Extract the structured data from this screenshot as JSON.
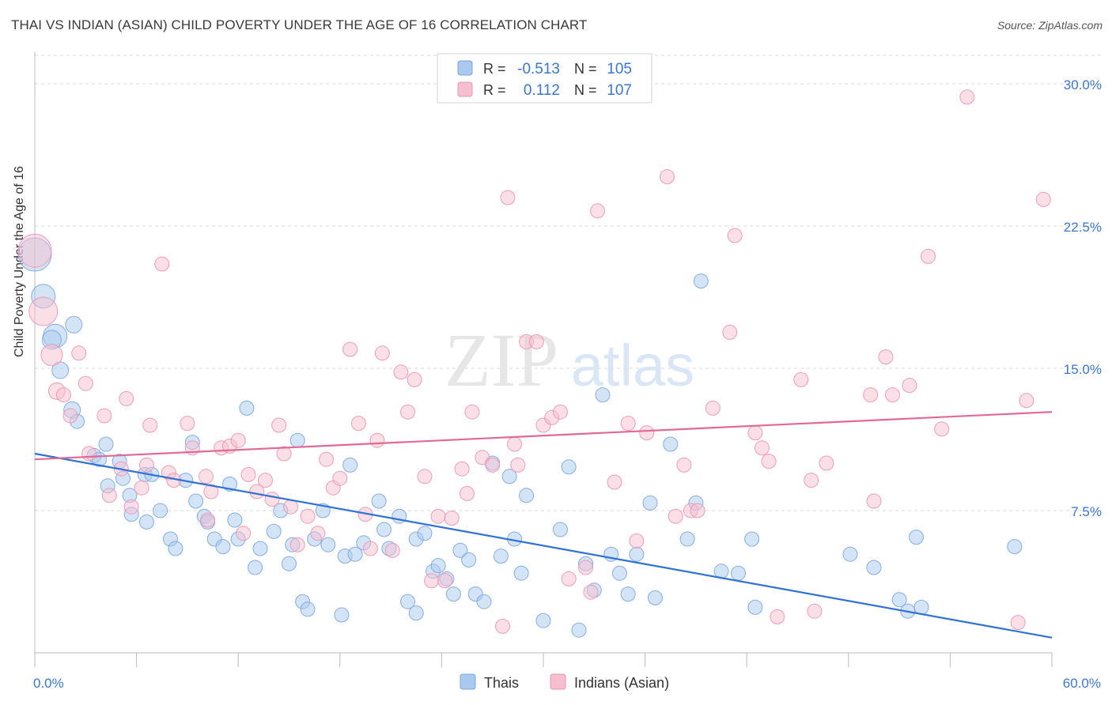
{
  "header": {
    "title": "THAI VS INDIAN (ASIAN) CHILD POVERTY UNDER THE AGE OF 16 CORRELATION CHART",
    "source": "Source: ZipAtlas.com"
  },
  "watermark": {
    "zip": "ZIP",
    "atlas": "atlas"
  },
  "legend_box": {
    "rows": [
      {
        "r_label": "R =",
        "r_value": "-0.513",
        "n_label": "N =",
        "n_value": "105"
      },
      {
        "r_label": "R =",
        "r_value": "0.112",
        "n_label": "N =",
        "n_value": "107"
      }
    ]
  },
  "bottom_legend": [
    "Thais",
    "Indians (Asian)"
  ],
  "colors": {
    "thais_fill": "#a9c9f0",
    "thais_stroke": "#7aa6e0",
    "thais_line": "#2f72d4",
    "indians_fill": "#f6bfd0",
    "indians_stroke": "#ee94b2",
    "indians_line": "#e06a95",
    "accent_text": "#3a78d0",
    "grid": "#d9d9d9"
  },
  "chart_data": {
    "type": "scatter",
    "title": "THAI VS INDIAN (ASIAN) CHILD POVERTY UNDER THE AGE OF 16 CORRELATION CHART",
    "xlabel": "",
    "ylabel": "Child Poverty Under the Age of 16",
    "xlim": [
      0,
      60
    ],
    "ylim": [
      0,
      31.5
    ],
    "x_tick_labels": [
      "0.0%",
      "60.0%"
    ],
    "y_ticks": [
      7.5,
      15.0,
      22.5,
      30.0
    ],
    "y_tick_labels": [
      "7.5%",
      "15.0%",
      "22.5%",
      "30.0%"
    ],
    "grid": "horizontal dashed",
    "series": [
      {
        "name": "Thais",
        "trend": {
          "x": [
            0,
            60
          ],
          "y": [
            10.5,
            0.8
          ]
        },
        "points": [
          [
            0.0,
            21.0,
            1.4
          ],
          [
            0.5,
            18.8,
            1.0
          ],
          [
            1.2,
            16.7,
            1.0
          ],
          [
            1.0,
            16.5,
            0.8
          ],
          [
            1.5,
            14.9,
            0.7
          ],
          [
            2.3,
            17.3,
            0.7
          ],
          [
            2.2,
            12.8,
            0.7
          ],
          [
            2.5,
            12.2,
            0.6
          ],
          [
            3.5,
            10.4,
            0.6
          ],
          [
            3.8,
            10.2,
            0.6
          ],
          [
            4.2,
            11.0,
            0.6
          ],
          [
            4.3,
            8.8,
            0.6
          ],
          [
            5.0,
            10.1,
            0.6
          ],
          [
            5.2,
            9.2,
            0.6
          ],
          [
            5.6,
            8.3,
            0.6
          ],
          [
            5.7,
            7.3,
            0.6
          ],
          [
            6.5,
            9.4,
            0.6
          ],
          [
            6.6,
            6.9,
            0.6
          ],
          [
            6.9,
            9.4,
            0.6
          ],
          [
            7.4,
            7.5,
            0.6
          ],
          [
            8.0,
            6.0,
            0.6
          ],
          [
            8.3,
            5.5,
            0.6
          ],
          [
            8.9,
            9.1,
            0.6
          ],
          [
            9.3,
            11.1,
            0.6
          ],
          [
            9.5,
            8.0,
            0.6
          ],
          [
            10.0,
            7.2,
            0.6
          ],
          [
            10.2,
            6.9,
            0.6
          ],
          [
            10.6,
            6.0,
            0.6
          ],
          [
            11.1,
            5.6,
            0.6
          ],
          [
            11.5,
            8.9,
            0.6
          ],
          [
            11.8,
            7.0,
            0.6
          ],
          [
            12.0,
            6.0,
            0.6
          ],
          [
            12.5,
            12.9,
            0.6
          ],
          [
            13.0,
            4.5,
            0.6
          ],
          [
            13.3,
            5.5,
            0.6
          ],
          [
            14.1,
            6.4,
            0.6
          ],
          [
            14.5,
            7.5,
            0.6
          ],
          [
            15.0,
            4.7,
            0.6
          ],
          [
            15.2,
            5.7,
            0.6
          ],
          [
            15.5,
            11.2,
            0.6
          ],
          [
            15.8,
            2.7,
            0.6
          ],
          [
            16.1,
            2.3,
            0.6
          ],
          [
            16.5,
            6.0,
            0.6
          ],
          [
            17.0,
            7.5,
            0.6
          ],
          [
            17.3,
            5.7,
            0.6
          ],
          [
            18.1,
            2.0,
            0.6
          ],
          [
            18.3,
            5.1,
            0.6
          ],
          [
            18.6,
            9.9,
            0.6
          ],
          [
            18.9,
            5.2,
            0.6
          ],
          [
            19.4,
            5.8,
            0.6
          ],
          [
            20.3,
            8.0,
            0.6
          ],
          [
            20.6,
            6.5,
            0.6
          ],
          [
            20.9,
            5.5,
            0.6
          ],
          [
            21.5,
            7.2,
            0.6
          ],
          [
            22.0,
            2.7,
            0.6
          ],
          [
            22.5,
            6.0,
            0.6
          ],
          [
            22.5,
            2.1,
            0.6
          ],
          [
            23.0,
            6.3,
            0.6
          ],
          [
            23.5,
            4.3,
            0.6
          ],
          [
            23.8,
            4.6,
            0.6
          ],
          [
            24.3,
            3.9,
            0.6
          ],
          [
            24.7,
            3.1,
            0.6
          ],
          [
            25.1,
            5.4,
            0.6
          ],
          [
            25.6,
            4.9,
            0.6
          ],
          [
            26.0,
            3.1,
            0.6
          ],
          [
            26.5,
            2.7,
            0.6
          ],
          [
            27.0,
            10.0,
            0.6
          ],
          [
            27.5,
            5.1,
            0.6
          ],
          [
            28.0,
            9.3,
            0.6
          ],
          [
            28.3,
            6.0,
            0.6
          ],
          [
            28.7,
            4.2,
            0.6
          ],
          [
            29.0,
            8.3,
            0.6
          ],
          [
            30.0,
            1.7,
            0.6
          ],
          [
            31.0,
            6.5,
            0.6
          ],
          [
            31.5,
            9.8,
            0.6
          ],
          [
            32.1,
            1.2,
            0.6
          ],
          [
            32.5,
            4.7,
            0.6
          ],
          [
            33.0,
            3.3,
            0.6
          ],
          [
            33.5,
            13.6,
            0.6
          ],
          [
            34.0,
            5.2,
            0.6
          ],
          [
            34.5,
            4.2,
            0.6
          ],
          [
            35.0,
            3.1,
            0.6
          ],
          [
            35.5,
            5.2,
            0.6
          ],
          [
            36.3,
            7.9,
            0.6
          ],
          [
            36.6,
            2.9,
            0.6
          ],
          [
            37.5,
            11.0,
            0.6
          ],
          [
            38.5,
            6.0,
            0.6
          ],
          [
            39.0,
            7.9,
            0.6
          ],
          [
            39.3,
            19.6,
            0.6
          ],
          [
            40.5,
            4.3,
            0.6
          ],
          [
            41.5,
            4.2,
            0.6
          ],
          [
            42.3,
            6.0,
            0.6
          ],
          [
            42.5,
            2.4,
            0.6
          ],
          [
            48.1,
            5.2,
            0.6
          ],
          [
            49.5,
            4.5,
            0.6
          ],
          [
            51.0,
            2.8,
            0.6
          ],
          [
            51.5,
            2.2,
            0.6
          ],
          [
            52.0,
            6.1,
            0.6
          ],
          [
            52.3,
            2.4,
            0.6
          ],
          [
            57.8,
            5.6,
            0.6
          ]
        ]
      },
      {
        "name": "Indians (Asian)",
        "trend": {
          "x": [
            0,
            60
          ],
          "y": [
            10.2,
            12.7
          ]
        },
        "points": [
          [
            0.0,
            21.2,
            1.4
          ],
          [
            0.5,
            18.0,
            1.2
          ],
          [
            1.0,
            15.7,
            0.9
          ],
          [
            1.3,
            13.8,
            0.7
          ],
          [
            1.7,
            13.6,
            0.6
          ],
          [
            2.1,
            12.5,
            0.6
          ],
          [
            2.6,
            15.8,
            0.6
          ],
          [
            3.0,
            14.2,
            0.6
          ],
          [
            3.2,
            10.5,
            0.6
          ],
          [
            4.1,
            12.5,
            0.6
          ],
          [
            4.4,
            8.3,
            0.6
          ],
          [
            5.1,
            9.7,
            0.6
          ],
          [
            5.4,
            13.4,
            0.6
          ],
          [
            5.7,
            7.7,
            0.6
          ],
          [
            6.3,
            8.7,
            0.6
          ],
          [
            6.6,
            9.9,
            0.6
          ],
          [
            6.8,
            12.0,
            0.6
          ],
          [
            7.5,
            20.5,
            0.6
          ],
          [
            7.9,
            9.5,
            0.6
          ],
          [
            8.2,
            9.1,
            0.6
          ],
          [
            9.0,
            12.1,
            0.6
          ],
          [
            9.3,
            10.8,
            0.6
          ],
          [
            10.1,
            9.3,
            0.6
          ],
          [
            10.2,
            7.0,
            0.6
          ],
          [
            10.4,
            8.5,
            0.6
          ],
          [
            11.0,
            10.8,
            0.6
          ],
          [
            11.5,
            10.9,
            0.6
          ],
          [
            12.0,
            11.2,
            0.6
          ],
          [
            12.3,
            6.3,
            0.6
          ],
          [
            12.6,
            9.4,
            0.6
          ],
          [
            13.1,
            8.5,
            0.6
          ],
          [
            13.6,
            9.1,
            0.6
          ],
          [
            14.0,
            8.1,
            0.6
          ],
          [
            14.4,
            12.0,
            0.6
          ],
          [
            14.7,
            10.5,
            0.6
          ],
          [
            15.1,
            7.7,
            0.6
          ],
          [
            15.5,
            5.7,
            0.6
          ],
          [
            16.1,
            7.2,
            0.6
          ],
          [
            16.7,
            6.3,
            0.6
          ],
          [
            17.2,
            10.2,
            0.6
          ],
          [
            17.6,
            8.7,
            0.6
          ],
          [
            18.0,
            9.2,
            0.6
          ],
          [
            18.6,
            16.0,
            0.6
          ],
          [
            19.1,
            12.1,
            0.6
          ],
          [
            19.5,
            7.3,
            0.6
          ],
          [
            19.8,
            5.5,
            0.6
          ],
          [
            20.2,
            11.2,
            0.6
          ],
          [
            20.5,
            15.8,
            0.6
          ],
          [
            21.1,
            5.4,
            0.6
          ],
          [
            21.6,
            14.8,
            0.6
          ],
          [
            22.0,
            12.7,
            0.6
          ],
          [
            22.4,
            14.4,
            0.6
          ],
          [
            23.0,
            9.3,
            0.6
          ],
          [
            23.4,
            3.8,
            0.6
          ],
          [
            23.8,
            7.2,
            0.6
          ],
          [
            24.2,
            3.8,
            0.6
          ],
          [
            24.6,
            7.1,
            0.6
          ],
          [
            25.2,
            9.7,
            0.6
          ],
          [
            25.5,
            8.4,
            0.6
          ],
          [
            25.8,
            12.7,
            0.6
          ],
          [
            26.4,
            10.3,
            0.6
          ],
          [
            27.0,
            9.9,
            0.6
          ],
          [
            27.6,
            1.4,
            0.6
          ],
          [
            27.9,
            24.0,
            0.6
          ],
          [
            28.3,
            11.0,
            0.6
          ],
          [
            28.5,
            9.9,
            0.6
          ],
          [
            29.0,
            16.4,
            0.6
          ],
          [
            29.6,
            16.4,
            0.6
          ],
          [
            30.0,
            12.0,
            0.6
          ],
          [
            30.5,
            12.4,
            0.6
          ],
          [
            31.0,
            12.7,
            0.6
          ],
          [
            31.5,
            3.9,
            0.6
          ],
          [
            32.5,
            4.5,
            0.6
          ],
          [
            32.8,
            3.2,
            0.6
          ],
          [
            33.2,
            23.3,
            0.6
          ],
          [
            34.2,
            9.0,
            0.6
          ],
          [
            35.0,
            12.1,
            0.6
          ],
          [
            35.5,
            5.9,
            0.6
          ],
          [
            36.1,
            11.6,
            0.6
          ],
          [
            37.3,
            25.1,
            0.6
          ],
          [
            37.8,
            7.2,
            0.6
          ],
          [
            38.3,
            9.9,
            0.6
          ],
          [
            38.7,
            7.5,
            0.6
          ],
          [
            39.1,
            7.5,
            0.6
          ],
          [
            40.0,
            12.9,
            0.6
          ],
          [
            41.0,
            16.9,
            0.6
          ],
          [
            41.3,
            22.0,
            0.6
          ],
          [
            42.5,
            11.6,
            0.6
          ],
          [
            42.9,
            10.8,
            0.6
          ],
          [
            43.3,
            10.1,
            0.6
          ],
          [
            43.8,
            1.9,
            0.6
          ],
          [
            45.2,
            14.4,
            0.6
          ],
          [
            45.8,
            9.1,
            0.6
          ],
          [
            46.0,
            2.2,
            0.6
          ],
          [
            46.7,
            10.0,
            0.6
          ],
          [
            49.3,
            13.6,
            0.6
          ],
          [
            49.5,
            8.0,
            0.6
          ],
          [
            50.2,
            15.6,
            0.6
          ],
          [
            50.6,
            13.6,
            0.6
          ],
          [
            51.6,
            14.1,
            0.6
          ],
          [
            52.7,
            20.9,
            0.6
          ],
          [
            53.5,
            11.8,
            0.6
          ],
          [
            55.0,
            29.3,
            0.6
          ],
          [
            58.0,
            1.6,
            0.6
          ],
          [
            58.5,
            13.3,
            0.6
          ],
          [
            59.5,
            23.9,
            0.6
          ]
        ]
      }
    ]
  }
}
